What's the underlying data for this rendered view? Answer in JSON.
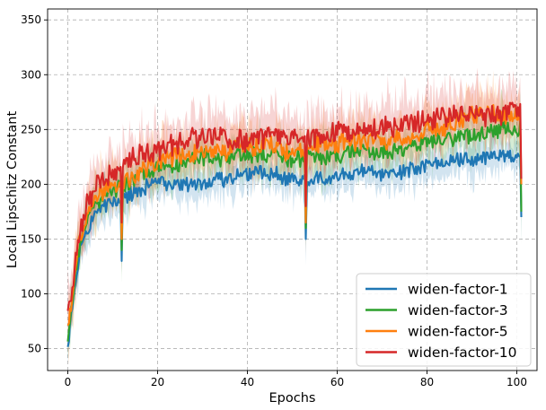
{
  "chart_data": {
    "type": "line",
    "title": "",
    "xlabel": "Epochs",
    "ylabel": "Local Lipschitz Constant",
    "xlim": [
      -4.5,
      104.5
    ],
    "ylim": [
      30,
      360
    ],
    "x_ticks": [
      0,
      20,
      40,
      60,
      80,
      100
    ],
    "y_ticks": [
      50,
      100,
      150,
      200,
      250,
      300,
      350
    ],
    "grid": true,
    "legend_position": "bottom-right",
    "shaded_band": true,
    "series": [
      {
        "name": "widen-factor-1",
        "color": "#1f77b4",
        "anchors": [
          [
            0,
            50
          ],
          [
            1,
            90
          ],
          [
            2,
            120
          ],
          [
            3,
            145
          ],
          [
            4,
            158
          ],
          [
            6,
            170
          ],
          [
            8,
            180
          ],
          [
            10,
            183
          ],
          [
            13,
            188
          ],
          [
            16,
            196
          ],
          [
            20,
            202
          ],
          [
            25,
            200
          ],
          [
            30,
            200
          ],
          [
            35,
            205
          ],
          [
            40,
            210
          ],
          [
            45,
            210
          ],
          [
            50,
            205
          ],
          [
            55,
            205
          ],
          [
            60,
            208
          ],
          [
            65,
            212
          ],
          [
            70,
            210
          ],
          [
            75,
            212
          ],
          [
            80,
            218
          ],
          [
            85,
            222
          ],
          [
            90,
            222
          ],
          [
            95,
            228
          ],
          [
            100,
            224
          ]
        ],
        "noise": 6,
        "dips": [
          [
            12,
            130
          ],
          [
            53,
            150
          ],
          [
            101,
            170
          ]
        ]
      },
      {
        "name": "widen-factor-3",
        "color": "#2ca02c",
        "anchors": [
          [
            0,
            55
          ],
          [
            1,
            92
          ],
          [
            2,
            128
          ],
          [
            3,
            150
          ],
          [
            4,
            165
          ],
          [
            6,
            180
          ],
          [
            8,
            188
          ],
          [
            10,
            195
          ],
          [
            13,
            200
          ],
          [
            16,
            208
          ],
          [
            20,
            215
          ],
          [
            25,
            218
          ],
          [
            30,
            225
          ],
          [
            35,
            225
          ],
          [
            40,
            228
          ],
          [
            45,
            228
          ],
          [
            50,
            222
          ],
          [
            55,
            225
          ],
          [
            60,
            228
          ],
          [
            65,
            228
          ],
          [
            70,
            230
          ],
          [
            75,
            232
          ],
          [
            80,
            238
          ],
          [
            85,
            242
          ],
          [
            90,
            245
          ],
          [
            95,
            250
          ],
          [
            100,
            250
          ]
        ],
        "noise": 7,
        "dips": [
          [
            12,
            140
          ],
          [
            53,
            160
          ],
          [
            101,
            175
          ]
        ]
      },
      {
        "name": "widen-factor-5",
        "color": "#ff7f0e",
        "anchors": [
          [
            0,
            65
          ],
          [
            1,
            100
          ],
          [
            2,
            135
          ],
          [
            3,
            155
          ],
          [
            4,
            170
          ],
          [
            6,
            188
          ],
          [
            8,
            195
          ],
          [
            10,
            200
          ],
          [
            13,
            205
          ],
          [
            16,
            210
          ],
          [
            20,
            222
          ],
          [
            25,
            225
          ],
          [
            30,
            230
          ],
          [
            35,
            230
          ],
          [
            40,
            235
          ],
          [
            45,
            235
          ],
          [
            50,
            230
          ],
          [
            55,
            235
          ],
          [
            60,
            238
          ],
          [
            65,
            240
          ],
          [
            70,
            240
          ],
          [
            75,
            242
          ],
          [
            80,
            250
          ],
          [
            85,
            255
          ],
          [
            90,
            262
          ],
          [
            95,
            268
          ],
          [
            100,
            262
          ]
        ],
        "noise": 8,
        "dips": [
          [
            12,
            150
          ],
          [
            53,
            165
          ],
          [
            101,
            200
          ]
        ]
      },
      {
        "name": "widen-factor-10",
        "color": "#d62728",
        "anchors": [
          [
            0,
            78
          ],
          [
            1,
            105
          ],
          [
            2,
            138
          ],
          [
            3,
            160
          ],
          [
            4,
            178
          ],
          [
            6,
            195
          ],
          [
            8,
            205
          ],
          [
            10,
            210
          ],
          [
            13,
            220
          ],
          [
            16,
            228
          ],
          [
            20,
            230
          ],
          [
            25,
            238
          ],
          [
            30,
            245
          ],
          [
            35,
            240
          ],
          [
            40,
            240
          ],
          [
            45,
            245
          ],
          [
            50,
            245
          ],
          [
            55,
            242
          ],
          [
            60,
            248
          ],
          [
            65,
            250
          ],
          [
            70,
            252
          ],
          [
            75,
            255
          ],
          [
            80,
            258
          ],
          [
            85,
            262
          ],
          [
            90,
            265
          ],
          [
            95,
            262
          ],
          [
            100,
            270
          ]
        ],
        "noise": 9,
        "dips": [
          [
            12,
            165
          ],
          [
            53,
            180
          ],
          [
            101,
            205
          ]
        ]
      }
    ]
  }
}
